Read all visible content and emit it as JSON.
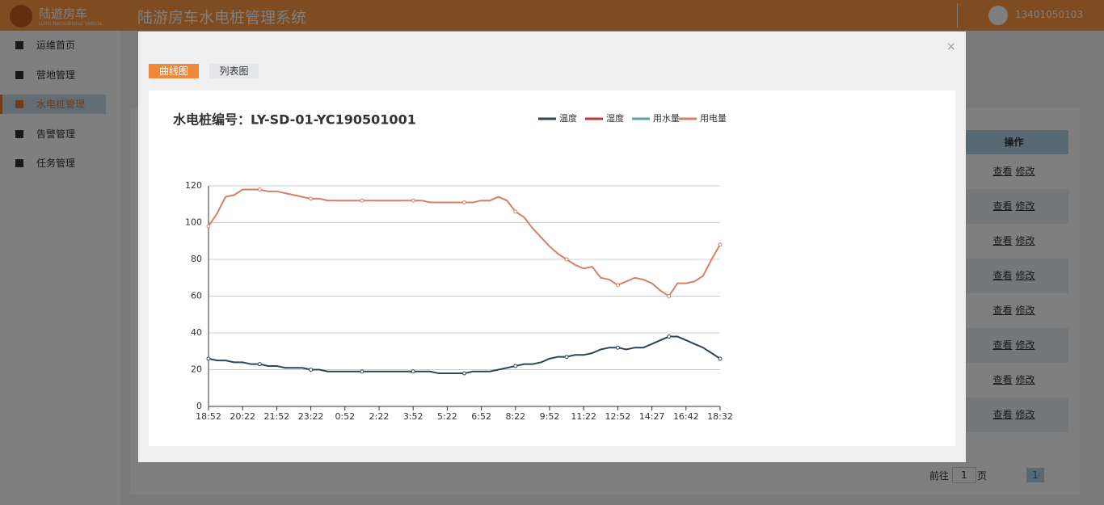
{
  "header": {
    "logo": "陆遊房车",
    "logo_sub": "LUYO Recreational Vehicle",
    "title": "陆游房车水电桩管理系统",
    "user": "13401050103"
  },
  "sidebar": [
    "运维首页",
    "营地管理",
    "水电桩管理",
    "告警管理",
    "任务管理"
  ],
  "table": {
    "header": "操作",
    "rows": [
      [
        "查看",
        "修改"
      ],
      [
        "查看",
        "修改"
      ],
      [
        "查看",
        "修改"
      ],
      [
        "查看",
        "修改"
      ],
      [
        "查看",
        "修改"
      ],
      [
        "查看",
        "修改"
      ],
      [
        "查看",
        "修改"
      ],
      [
        "查看",
        "修改"
      ]
    ]
  },
  "pagination": {
    "goto": "前往",
    "page_input": "1",
    "page_unit": "页",
    "current": "1"
  },
  "modal": {
    "close": "×",
    "tabs": [
      "曲线图",
      "列表图"
    ]
  },
  "chart_data": {
    "type": "line",
    "title": "水电桩编号：LY-SD-01-YC190501001",
    "categories": [
      "18:52",
      null,
      null,
      null,
      "20:22",
      null,
      null,
      null,
      "21:52",
      null,
      null,
      null,
      "23:22",
      null,
      null,
      null,
      "0:52",
      null,
      null,
      null,
      "2:22",
      null,
      null,
      null,
      "3:52",
      null,
      null,
      null,
      "5:22",
      null,
      null,
      null,
      "6:52",
      null,
      null,
      null,
      "8:22",
      null,
      null,
      null,
      "9:52",
      null,
      null,
      null,
      "11:22",
      null,
      null,
      null,
      "12:52",
      null,
      null,
      null,
      "14:27",
      null,
      null,
      null,
      "16:42",
      null,
      null,
      null,
      "18:32"
    ],
    "ylim": [
      0,
      120
    ],
    "yticks": [
      0,
      20,
      40,
      60,
      80,
      100,
      120
    ],
    "grid": true,
    "series": [
      {
        "name": "温度",
        "color": "#2f4554",
        "values": [
          26,
          25,
          25,
          24,
          24,
          23,
          23,
          22,
          22,
          21,
          21,
          21,
          20,
          20,
          19,
          19,
          19,
          19,
          19,
          19,
          19,
          19,
          19,
          19,
          19,
          19,
          19,
          18,
          18,
          18,
          18,
          19,
          19,
          19,
          20,
          21,
          22,
          23,
          23,
          24,
          26,
          27,
          27,
          28,
          28,
          29,
          31,
          32,
          32,
          31,
          32,
          32,
          34,
          36,
          38,
          38,
          36,
          34,
          32,
          29,
          26
        ]
      },
      {
        "name": "湿度",
        "color": "#c23531",
        "values": [
          null,
          null,
          null,
          null,
          null,
          null,
          null,
          null,
          null,
          null,
          null,
          null,
          null,
          null,
          null,
          null,
          null,
          null,
          null,
          null,
          null,
          null,
          null,
          null,
          null,
          null,
          null,
          null,
          null,
          null,
          null,
          null,
          null,
          null,
          null,
          null,
          null,
          null,
          null,
          null,
          null,
          null,
          null,
          null,
          null,
          null,
          null,
          null,
          null,
          null,
          null,
          null,
          null,
          null,
          null,
          null,
          null,
          null,
          null,
          null,
          null
        ]
      },
      {
        "name": "用水量",
        "color": "#61a0a8",
        "values": [
          null,
          null,
          null,
          null,
          null,
          null,
          null,
          null,
          null,
          null,
          null,
          null,
          null,
          null,
          null,
          null,
          null,
          null,
          null,
          null,
          null,
          null,
          null,
          null,
          null,
          null,
          null,
          null,
          null,
          null,
          null,
          null,
          null,
          null,
          null,
          null,
          null,
          null,
          null,
          null,
          null,
          null,
          null,
          null,
          null,
          null,
          null,
          null,
          null,
          null,
          null,
          null,
          null,
          null,
          null,
          null,
          null,
          null,
          null,
          null,
          null
        ]
      },
      {
        "name": "用电量",
        "color": "#d48265",
        "values": [
          98,
          105,
          114,
          115,
          118,
          118,
          118,
          117,
          117,
          116,
          115,
          114,
          113,
          113,
          112,
          112,
          112,
          112,
          112,
          112,
          112,
          112,
          112,
          112,
          112,
          112,
          111,
          111,
          111,
          111,
          111,
          111,
          112,
          112,
          114,
          112,
          106,
          103,
          97,
          92,
          87,
          83,
          80,
          77,
          75,
          76,
          70,
          69,
          66,
          68,
          70,
          69,
          67,
          63,
          60,
          67,
          67,
          68,
          71,
          80,
          88
        ]
      }
    ]
  }
}
